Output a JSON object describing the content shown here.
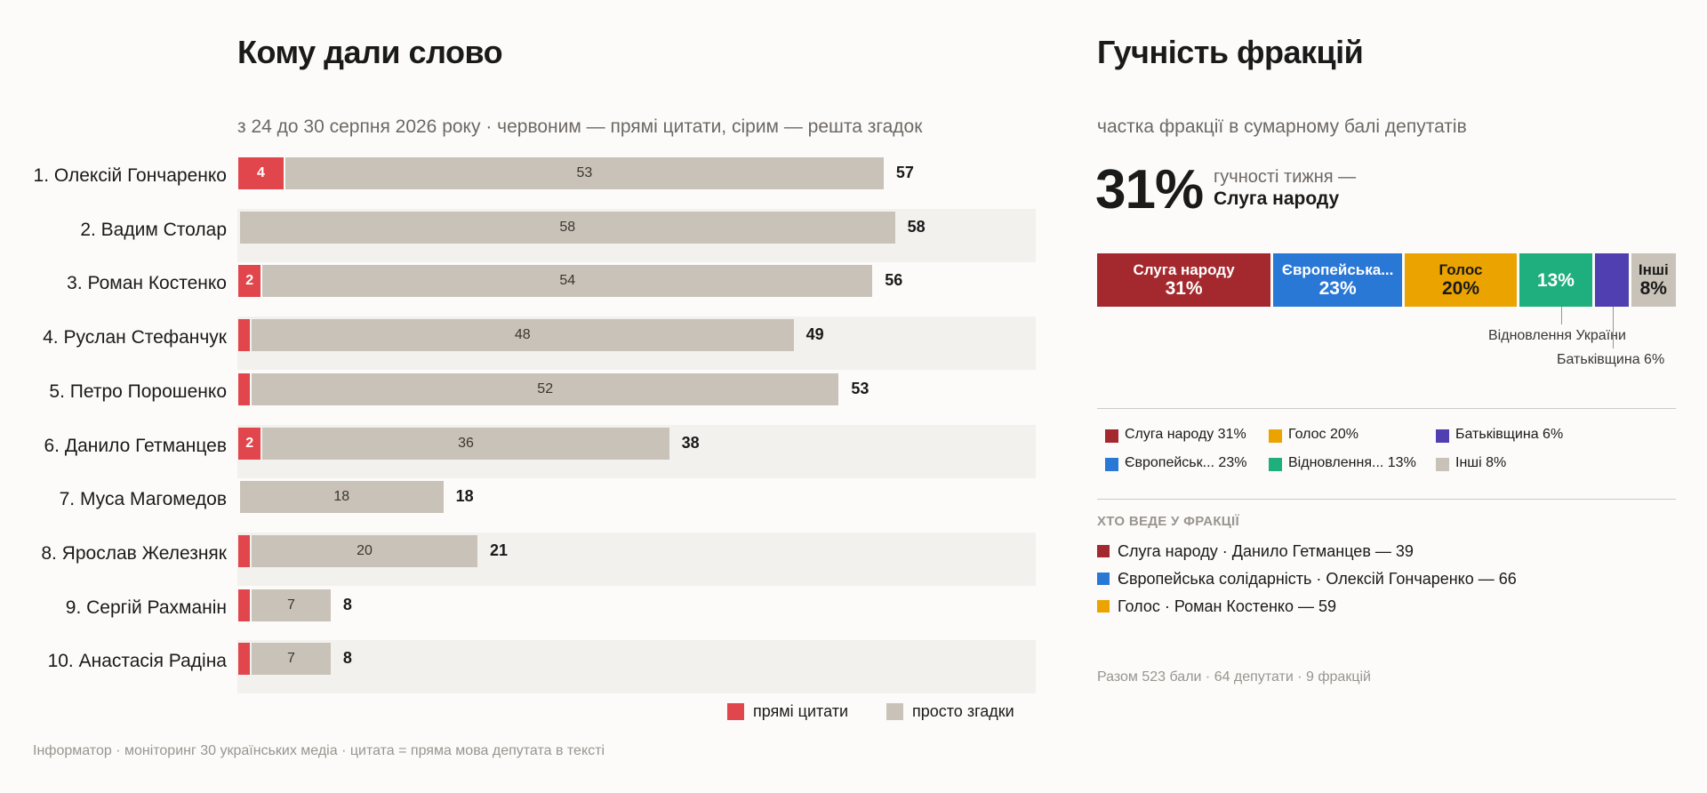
{
  "left": {
    "title": "Кому дали слово",
    "subtitle": "з 24 до 30 серпня 2026 року · червоним — прямі цитати, сірим — решта згадок",
    "legend": {
      "direct": "прямі цитати",
      "mentions": "просто згадки"
    },
    "colors": {
      "direct": "#e0464c",
      "mentions": "#c9c2b8"
    }
  },
  "chart_data": {
    "type": "bar",
    "orientation": "horizontal",
    "stacked": true,
    "categories": [
      "1. Олексій Гончаренко",
      "2. Вадим Столар",
      "3. Роман Костенко",
      "4. Руслан Стефанчук",
      "5. Петро Порошенко",
      "6. Данило Гетманцев",
      "7. Муса Магомедов",
      "8. Ярослав Железняк",
      "9. Сергій Рахманін",
      "10. Анастасія Радіна"
    ],
    "series": [
      {
        "name": "прямі цитати",
        "values": [
          4,
          0,
          2,
          1,
          1,
          2,
          0,
          1,
          1,
          1
        ]
      },
      {
        "name": "просто згадки",
        "values": [
          53,
          58,
          54,
          48,
          52,
          36,
          18,
          20,
          7,
          7
        ]
      }
    ],
    "totals": [
      57,
      58,
      56,
      49,
      53,
      38,
      18,
      21,
      8,
      8
    ],
    "xlim": [
      0,
      64
    ]
  },
  "right": {
    "title": "Гучність фракцій",
    "subtitle": "частка фракції в сумарному балі депутатів",
    "big_value": "31%",
    "big_caption_1": "гучності тижня —",
    "big_caption_2": "Слуга народу",
    "factions": [
      {
        "name": "Слуга народу",
        "bar_label": "Слуга народу",
        "pct": 31,
        "pct_label": "31%",
        "legend": "Слуга народу  31%",
        "color": "#a4292e"
      },
      {
        "name": "Європейська солідарність",
        "bar_label": "Європейська...",
        "pct": 23,
        "pct_label": "23%",
        "legend": "Європейськ...  23%",
        "color": "#2a78d6"
      },
      {
        "name": "Голос",
        "bar_label": "Голос",
        "pct": 20,
        "pct_label": "20%",
        "legend": "Голос  20%",
        "color": "#eba300"
      },
      {
        "name": "Відновлення України",
        "bar_label": "",
        "pct": 13,
        "pct_label": "13%",
        "legend": "Відновлення...  13%",
        "color": "#1fae7e"
      },
      {
        "name": "Батьківщина",
        "bar_label": "",
        "pct": 6,
        "pct_label": "",
        "legend": "Батьківщина  6%",
        "color": "#4f3fb0"
      },
      {
        "name": "Інші",
        "bar_label": "Інші",
        "pct": 8,
        "pct_label": "8%",
        "legend": "Інші  8%",
        "color": "#c9c2b8"
      }
    ],
    "callouts": {
      "vidnovlennia": "Відновлення України",
      "batkivshchyna": "Батьківщина 6%"
    },
    "leaders_title": "ХТО ВЕДЕ У ФРАКЦІЇ",
    "leaders": [
      {
        "text": "Слуга народу · Данило Гетманцев — 39",
        "color": "#a4292e"
      },
      {
        "text": "Європейська солідарність · Олексій Гончаренко — 66",
        "color": "#2a78d6"
      },
      {
        "text": "Голос · Роман Костенко — 59",
        "color": "#eba300"
      }
    ],
    "summary": "Разом 523 бали · 64 депутати · 9 фракцій"
  },
  "footer": "Інформатор · моніторинг 30 українських медіа · цитата = пряма мова депутата в тексті"
}
